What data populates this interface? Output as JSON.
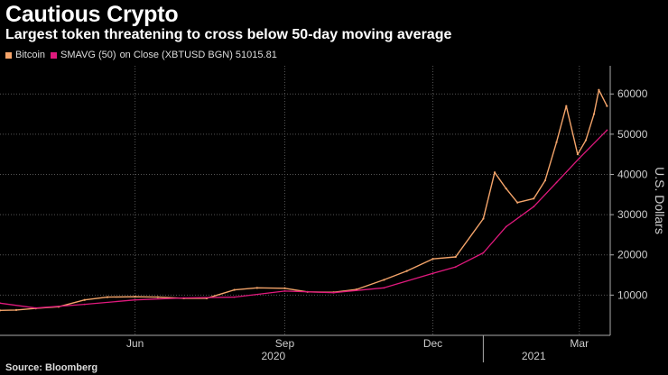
{
  "chart_data": {
    "type": "line",
    "title": "Cautious Crypto",
    "subtitle": "Largest token threatening to cross below 50-day moving average",
    "ylabel": "U.S. Dollars",
    "ylim": [
      0,
      67000
    ],
    "yticks": [
      10000,
      20000,
      30000,
      40000,
      50000,
      60000
    ],
    "ytick_labels": [
      "10000",
      "20000",
      "30000",
      "40000",
      "50000",
      "60000"
    ],
    "x_month_ticks": [
      {
        "label": "Jun",
        "date": "2020-06-01"
      },
      {
        "label": "Sep",
        "date": "2020-09-01"
      },
      {
        "label": "Dec",
        "date": "2020-12-01"
      },
      {
        "label": "Mar",
        "date": "2021-03-01"
      }
    ],
    "x_year_labels": [
      {
        "label": "2020",
        "center_date": "2020-08-25"
      },
      {
        "label": "2021",
        "center_date": "2021-02-01"
      }
    ],
    "x_range": [
      "2020-03-10",
      "2021-03-20"
    ],
    "year_divider_date": "2021-01-01",
    "legend": {
      "bitcoin": "Bitcoin",
      "sma": "SMAVG (50)",
      "sma_detail": "on Close (XBTUSD BGN) 51015.81"
    },
    "source": "Source: Bloomberg",
    "series": [
      {
        "name": "Bitcoin",
        "color": "#f4a46a",
        "dates": [
          "2020-03-10",
          "2020-03-20",
          "2020-04-01",
          "2020-04-15",
          "2020-05-01",
          "2020-05-15",
          "2020-06-01",
          "2020-06-15",
          "2020-07-01",
          "2020-07-15",
          "2020-08-01",
          "2020-08-15",
          "2020-09-01",
          "2020-09-15",
          "2020-10-01",
          "2020-10-15",
          "2020-11-01",
          "2020-11-15",
          "2020-12-01",
          "2020-12-15",
          "2021-01-01",
          "2021-01-08",
          "2021-01-15",
          "2021-01-22",
          "2021-02-01",
          "2021-02-08",
          "2021-02-15",
          "2021-02-21",
          "2021-02-28",
          "2021-03-05",
          "2021-03-10",
          "2021-03-13",
          "2021-03-18"
        ],
        "values": [
          6200,
          6300,
          6700,
          7100,
          8800,
          9500,
          9600,
          9500,
          9200,
          9200,
          11300,
          11800,
          11700,
          10800,
          10700,
          11400,
          13800,
          16000,
          19000,
          19500,
          29000,
          40500,
          36500,
          33000,
          34000,
          38500,
          48000,
          57000,
          45000,
          48500,
          55000,
          61000,
          57000
        ]
      },
      {
        "name": "SMAVG (50)",
        "color": "#e0197d",
        "dates": [
          "2020-03-10",
          "2020-04-01",
          "2020-05-01",
          "2020-06-01",
          "2020-07-01",
          "2020-08-01",
          "2020-09-01",
          "2020-10-01",
          "2020-11-01",
          "2020-12-01",
          "2020-12-15",
          "2021-01-01",
          "2021-01-15",
          "2021-02-01",
          "2021-02-15",
          "2021-03-01",
          "2021-03-18"
        ],
        "values": [
          8000,
          6800,
          7700,
          8800,
          9300,
          9500,
          11000,
          10600,
          11800,
          15400,
          17000,
          20500,
          27000,
          32000,
          38000,
          44000,
          51000
        ]
      }
    ]
  }
}
